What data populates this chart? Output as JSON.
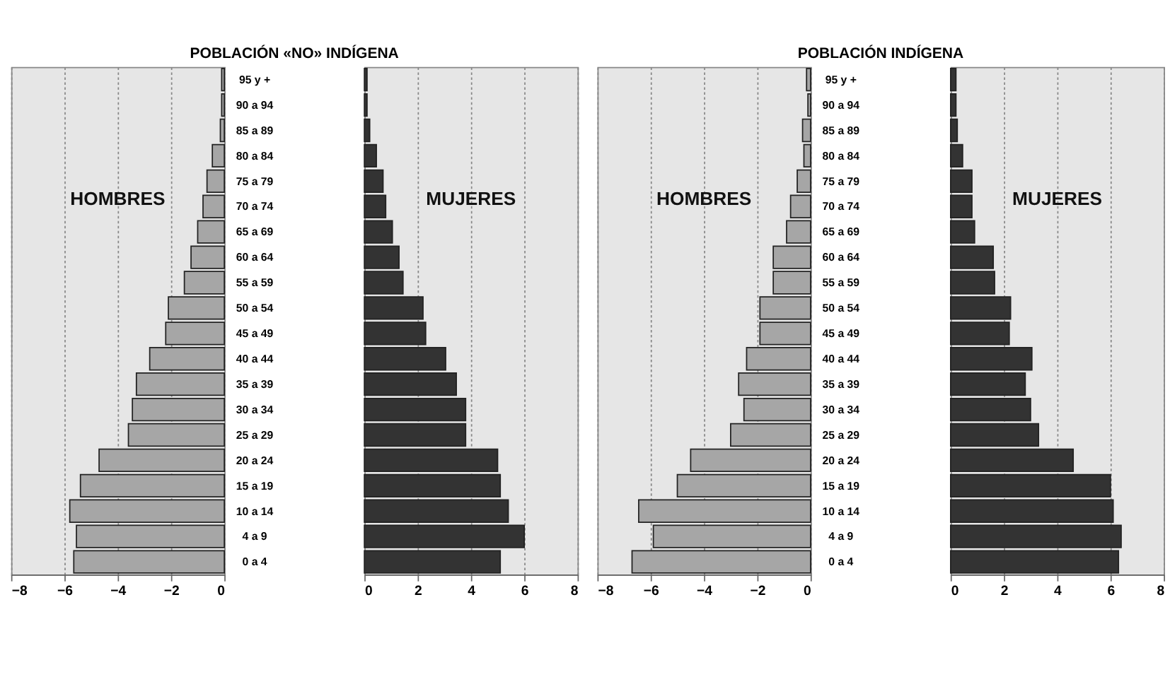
{
  "chart_data": [
    {
      "type": "bar",
      "orientation": "horizontal",
      "title": "POBLACIÓN «NO» INDÍGENA",
      "annotations": [
        "HOMBRES"
      ],
      "categories": [
        "95 y +",
        "90 a 94",
        "85 a 89",
        "80 a 84",
        "75 a 79",
        "70 a 74",
        "65 a 69",
        "60 a 64",
        "55 a 59",
        "50 a 54",
        "45 a 49",
        "40 a 44",
        "35 a 39",
        "30 a 34",
        "25 a 29",
        "20 a 24",
        "15 a 19",
        "10 a 14",
        "4 a 9",
        "0 a 4"
      ],
      "series": [
        {
          "color": "#a6a6a6",
          "values": [
            -0.1,
            -0.1,
            -0.15,
            -0.45,
            -0.65,
            -0.8,
            -1.0,
            -1.25,
            -1.5,
            -2.1,
            -2.2,
            -2.8,
            -3.3,
            -3.45,
            -3.6,
            -4.7,
            -5.4,
            -5.8,
            -5.55,
            -5.65
          ]
        }
      ],
      "xlim": [
        -8,
        0
      ],
      "xticks": [
        -8,
        -6,
        -4,
        -2,
        0
      ],
      "grid": "x"
    },
    {
      "type": "bar",
      "orientation": "horizontal",
      "annotations": [
        "MUJERES"
      ],
      "categories": [
        null,
        null,
        null,
        null,
        null,
        null,
        null,
        null,
        null,
        null,
        null,
        null,
        null,
        null,
        null,
        null,
        null,
        null,
        null,
        null
      ],
      "series": [
        {
          "color": "#333333",
          "values": [
            0.1,
            0.1,
            0.2,
            0.45,
            0.7,
            0.8,
            1.05,
            1.3,
            1.45,
            2.2,
            2.3,
            3.05,
            3.45,
            3.8,
            3.8,
            5.0,
            5.1,
            5.4,
            6.0,
            5.1
          ]
        }
      ],
      "xlim": [
        0,
        8
      ],
      "xticks": [
        0,
        2,
        4,
        6,
        8
      ],
      "grid": "x"
    },
    {
      "type": "bar",
      "orientation": "horizontal",
      "title": "POBLACIÓN INDÍGENA",
      "annotations": [
        "HOMBRES"
      ],
      "categories": [
        "95 y +",
        "90 a 94",
        "85 a 89",
        "80 a 84",
        "75 a 79",
        "70 a 74",
        "65 a 69",
        "60 a 64",
        "55 a 59",
        "50 a 54",
        "45 a 49",
        "40 a 44",
        "35 a 39",
        "30 a 34",
        "25 a 29",
        "20 a 24",
        "15 a 19",
        "10 a 14",
        "4 a 9",
        "0 a 4"
      ],
      "series": [
        {
          "color": "#a6a6a6",
          "values": [
            -0.15,
            -0.1,
            -0.3,
            -0.25,
            -0.5,
            -0.75,
            -0.9,
            -1.4,
            -1.4,
            -1.9,
            -1.9,
            -2.4,
            -2.7,
            -2.5,
            -3.0,
            -4.5,
            -5.0,
            -6.45,
            -5.9,
            -6.7
          ]
        }
      ],
      "xlim": [
        -8,
        0
      ],
      "xticks": [
        -8,
        -6,
        -4,
        -2,
        0
      ],
      "grid": "x"
    },
    {
      "type": "bar",
      "orientation": "horizontal",
      "annotations": [
        "MUJERES"
      ],
      "categories": [
        null,
        null,
        null,
        null,
        null,
        null,
        null,
        null,
        null,
        null,
        null,
        null,
        null,
        null,
        null,
        null,
        null,
        null,
        null,
        null
      ],
      "series": [
        {
          "color": "#333333",
          "values": [
            0.2,
            0.2,
            0.25,
            0.45,
            0.8,
            0.8,
            0.9,
            1.6,
            1.65,
            2.25,
            2.2,
            3.05,
            2.8,
            3.0,
            3.3,
            4.6,
            6.0,
            6.1,
            6.4,
            6.3
          ]
        }
      ],
      "xlim": [
        0,
        8
      ],
      "xticks": [
        0,
        2,
        4,
        6,
        8
      ],
      "grid": "x"
    }
  ]
}
